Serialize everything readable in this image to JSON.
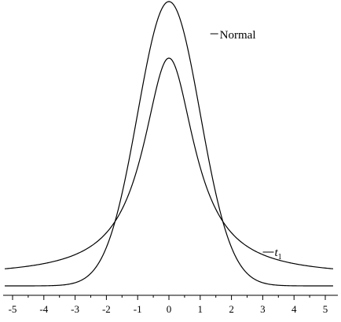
{
  "chart_data": {
    "type": "line",
    "title": "",
    "xlabel": "",
    "ylabel": "",
    "xlim": [
      -5.25,
      5.25
    ],
    "x_ticks": [
      "-5",
      "-4",
      "-3",
      "-2",
      "-1",
      "0",
      "1",
      "2",
      "3",
      "4",
      "5"
    ],
    "grid": false,
    "series": [
      {
        "name": "Normal",
        "distribution": "normal",
        "legend_at_x": 0.62,
        "baseline": "lower"
      },
      {
        "name_main": "t",
        "name_sub": "1",
        "name": "t1",
        "distribution": "student_t",
        "df": 1,
        "legend_at_x": 2.6,
        "baseline": "upper"
      }
    ]
  }
}
